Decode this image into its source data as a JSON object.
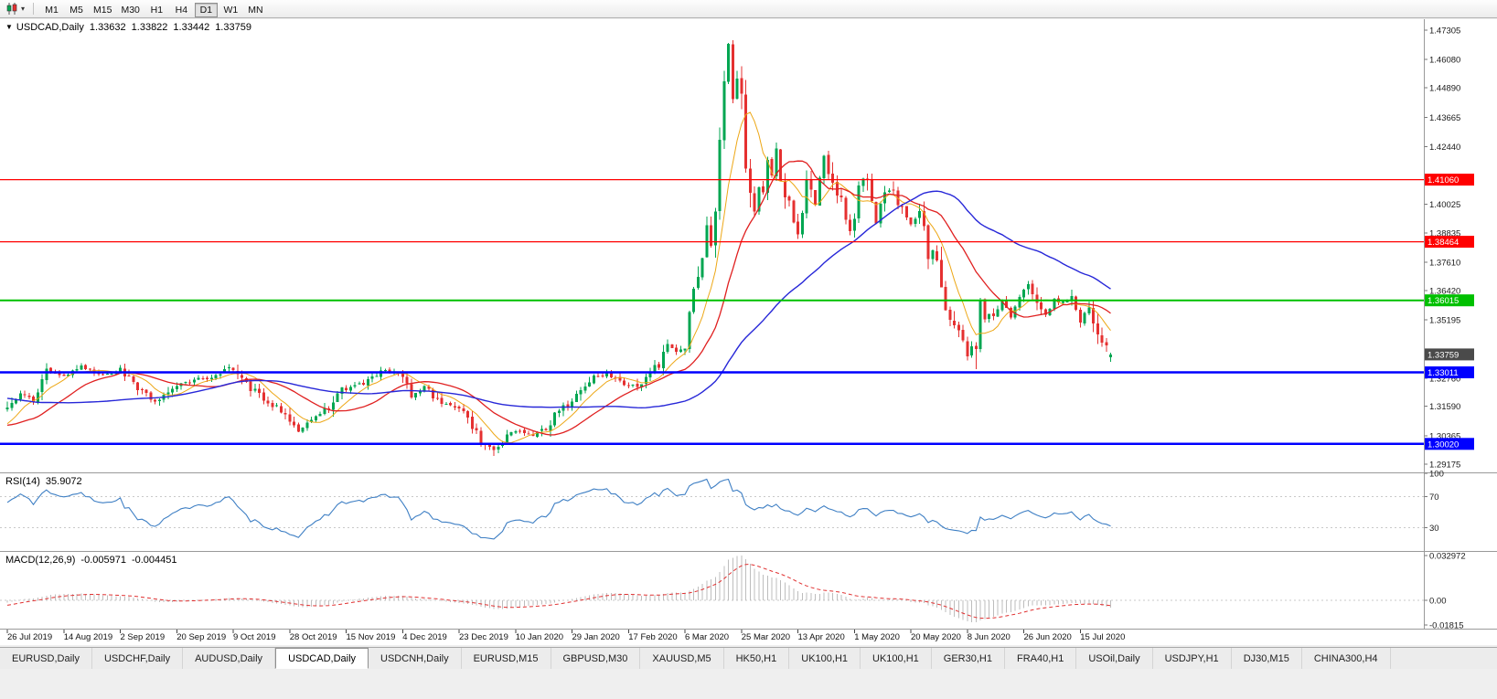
{
  "toolbar": {
    "timeframes": [
      "M1",
      "M5",
      "M15",
      "M30",
      "H1",
      "H4",
      "D1",
      "W1",
      "MN"
    ],
    "active": "D1"
  },
  "chart_header": {
    "arrow": "▼",
    "symbol": "USDCAD,Daily",
    "open": "1.33632",
    "high": "1.33822",
    "low": "1.33442",
    "close": "1.33759"
  },
  "indicators": {
    "rsi": {
      "name": "RSI(14)",
      "value": "35.9072",
      "color": "#3e7fc4",
      "levels": [
        70,
        30
      ],
      "axis_labels": [
        "100",
        "70",
        "30"
      ]
    },
    "macd": {
      "name": "MACD(12,26,9)",
      "value": "-0.005971",
      "signal_value": "-0.004451",
      "hist_color": "#bdbdbd",
      "signal_color": "#e03030",
      "axis_labels": [
        "0.032972",
        "0.00",
        "-0.01815"
      ]
    }
  },
  "tabs": {
    "items": [
      "EURUSD,Daily",
      "USDCHF,Daily",
      "AUDUSD,Daily",
      "USDCAD,Daily",
      "USDCNH,Daily",
      "EURUSD,M15",
      "GBPUSD,M30",
      "XAUUSD,M5",
      "HK50,H1",
      "UK100,H1",
      "UK100,H1",
      "GER30,H1",
      "FRA40,H1",
      "USOil,Daily",
      "USDJPY,H1",
      "DJ30,M15",
      "CHINA300,H4"
    ],
    "active_index": 3
  },
  "chart_data": {
    "type": "candlestick",
    "symbol": "USDCAD",
    "period": "Daily",
    "last_candle": {
      "open": 1.33632,
      "high": 1.33822,
      "low": 1.33442,
      "close": 1.33759
    },
    "price_scale": {
      "max": 1.4776,
      "min": 1.2883
    },
    "price_axis_labels": [
      "1.47305",
      "1.46080",
      "1.44890",
      "1.43665",
      "1.42440",
      "1.40025",
      "1.38835",
      "1.37610",
      "1.36420",
      "1.35195",
      "1.32760",
      "1.31590",
      "1.30365",
      "1.29175"
    ],
    "time_axis_labels": [
      "26 Jul 2019",
      "14 Aug 2019",
      "2 Sep 2019",
      "20 Sep 2019",
      "9 Oct 2019",
      "28 Oct 2019",
      "15 Nov 2019",
      "4 Dec 2019",
      "23 Dec 2019",
      "10 Jan 2020",
      "29 Jan 2020",
      "17 Feb 2020",
      "6 Mar 2020",
      "25 Mar 2020",
      "13 Apr 2020",
      "1 May 2020",
      "20 May 2020",
      "8 Jun 2020",
      "26 Jun 2020",
      "15 Jul 2020"
    ],
    "label_every": 13,
    "visible_candles": 255,
    "prefix_candles": 60,
    "seed": 13,
    "up_color": "#00a651",
    "down_color": "#e53030",
    "close_anchors": [
      [
        -60,
        1.335
      ],
      [
        -40,
        1.33
      ],
      [
        -25,
        1.318
      ],
      [
        -12,
        1.306
      ],
      [
        -5,
        1.304
      ],
      [
        0,
        1.3165
      ],
      [
        3,
        1.321
      ],
      [
        6,
        1.318
      ],
      [
        9,
        1.3305
      ],
      [
        13,
        1.328
      ],
      [
        17,
        1.3325
      ],
      [
        22,
        1.329
      ],
      [
        26,
        1.3315
      ],
      [
        30,
        1.323
      ],
      [
        34,
        1.318
      ],
      [
        39,
        1.325
      ],
      [
        43,
        1.3265
      ],
      [
        48,
        1.329
      ],
      [
        51,
        1.332
      ],
      [
        55,
        1.325
      ],
      [
        60,
        1.318
      ],
      [
        64,
        1.313
      ],
      [
        67,
        1.306
      ],
      [
        70,
        1.309
      ],
      [
        73,
        1.314
      ],
      [
        77,
        1.323
      ],
      [
        82,
        1.3255
      ],
      [
        87,
        1.331
      ],
      [
        91,
        1.329
      ],
      [
        93,
        1.32
      ],
      [
        96,
        1.324
      ],
      [
        100,
        1.3165
      ],
      [
        104,
        1.316
      ],
      [
        107,
        1.308
      ],
      [
        110,
        1.299
      ],
      [
        112,
        1.2975
      ],
      [
        115,
        1.3035
      ],
      [
        118,
        1.3055
      ],
      [
        121,
        1.304
      ],
      [
        124,
        1.307
      ],
      [
        127,
        1.314
      ],
      [
        130,
        1.318
      ],
      [
        132,
        1.323
      ],
      [
        135,
        1.3285
      ],
      [
        138,
        1.329
      ],
      [
        141,
        1.326
      ],
      [
        143,
        1.324
      ],
      [
        146,
        1.3255
      ],
      [
        148,
        1.3305
      ],
      [
        150,
        1.334
      ],
      [
        152,
        1.343
      ],
      [
        154,
        1.3385
      ],
      [
        156,
        1.3425
      ],
      [
        158,
        1.366
      ],
      [
        160,
        1.378
      ],
      [
        161,
        1.393
      ],
      [
        162,
        1.386
      ],
      [
        163,
        1.399
      ],
      [
        164,
        1.425
      ],
      [
        165,
        1.449
      ],
      [
        166,
        1.464
      ],
      [
        167,
        1.443
      ],
      [
        168,
        1.45
      ],
      [
        169,
        1.444
      ],
      [
        170,
        1.418
      ],
      [
        171,
        1.406
      ],
      [
        172,
        1.399
      ],
      [
        173,
        1.409
      ],
      [
        174,
        1.406
      ],
      [
        175,
        1.42
      ],
      [
        176,
        1.413
      ],
      [
        177,
        1.421
      ],
      [
        178,
        1.408
      ],
      [
        179,
        1.401
      ],
      [
        180,
        1.399
      ],
      [
        182,
        1.388
      ],
      [
        184,
        1.409
      ],
      [
        186,
        1.4
      ],
      [
        188,
        1.42
      ],
      [
        190,
        1.408
      ],
      [
        192,
        1.402
      ],
      [
        194,
        1.388
      ],
      [
        195,
        1.394
      ],
      [
        196,
        1.408
      ],
      [
        198,
        1.412
      ],
      [
        200,
        1.392
      ],
      [
        202,
        1.407
      ],
      [
        204,
        1.406
      ],
      [
        206,
        1.397
      ],
      [
        208,
        1.392
      ],
      [
        210,
        1.399
      ],
      [
        212,
        1.379
      ],
      [
        214,
        1.377
      ],
      [
        216,
        1.357
      ],
      [
        218,
        1.35
      ],
      [
        220,
        1.342
      ],
      [
        221,
        1.337
      ],
      [
        222,
        1.343
      ],
      [
        223,
        1.341
      ],
      [
        224,
        1.361
      ],
      [
        225,
        1.354
      ],
      [
        227,
        1.353
      ],
      [
        229,
        1.36
      ],
      [
        231,
        1.353
      ],
      [
        233,
        1.363
      ],
      [
        235,
        1.368
      ],
      [
        237,
        1.358
      ],
      [
        239,
        1.355
      ],
      [
        241,
        1.36
      ],
      [
        243,
        1.359
      ],
      [
        245,
        1.362
      ],
      [
        247,
        1.351
      ],
      [
        249,
        1.358
      ],
      [
        251,
        1.345
      ],
      [
        252,
        1.341
      ],
      [
        253,
        1.34
      ],
      [
        254,
        1.3376
      ]
    ],
    "wick_overrides": [
      [
        166,
        "high",
        1.4669
      ],
      [
        165,
        "high",
        1.456
      ],
      [
        112,
        "low",
        1.2952
      ],
      [
        223,
        "low",
        1.3315
      ]
    ],
    "moving_averages": [
      {
        "period": 8,
        "color": "#eda716",
        "width": 1
      },
      {
        "period": 20,
        "color": "#e02020",
        "width": 1.3
      },
      {
        "period": 55,
        "color": "#2727d8",
        "width": 1.4
      }
    ],
    "horizontal_lines": [
      {
        "price": 1.4106,
        "label": "1.41060",
        "color": "#ff0000",
        "width": 1.3
      },
      {
        "price": 1.38464,
        "label": "1.38464",
        "color": "#ff0000",
        "width": 1.3
      },
      {
        "price": 1.36015,
        "label": "1.36015",
        "color": "#00c000",
        "width": 2
      },
      {
        "price": 1.33011,
        "label": "1.33011",
        "color": "#0000ff",
        "width": 2.5
      },
      {
        "price": 1.3002,
        "label": "1.30020",
        "color": "#0000ff",
        "width": 2.5
      }
    ],
    "current_price": {
      "value": 1.33759,
      "label": "1.33759",
      "bg": "#4a4a4a"
    },
    "macd_axis": {
      "max": 0.032972,
      "min": -0.01815
    },
    "rsi_current": 35.9072
  }
}
